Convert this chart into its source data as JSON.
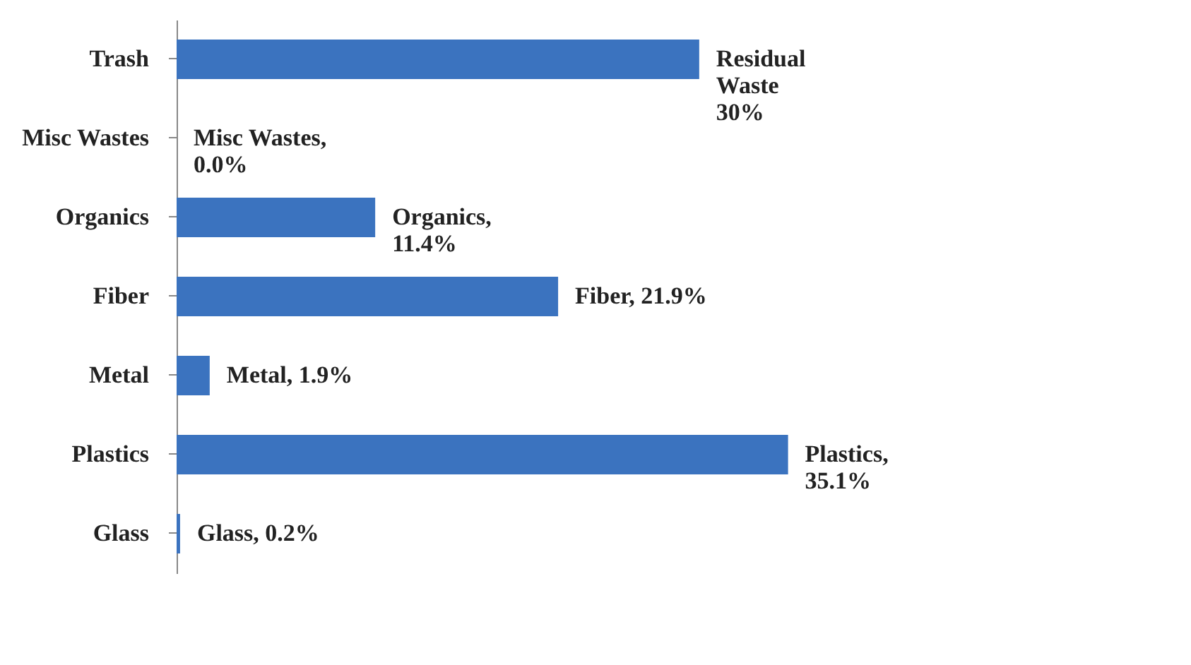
{
  "chart_data": {
    "type": "bar",
    "orientation": "horizontal",
    "categories": [
      "Trash",
      "Misc Wastes",
      "Organics",
      "Fiber",
      "Metal",
      "Plastics",
      "Glass"
    ],
    "values": [
      30,
      0.0,
      11.4,
      21.9,
      1.9,
      35.1,
      0.2
    ],
    "value_labels": [
      "Residual\nWaste\n30%",
      "Misc Wastes,\n0.0%",
      "Organics,\n11.4%",
      "Fiber, 21.9%",
      "Metal, 1.9%",
      "Plastics,\n35.1%",
      "Glass, 0.2%"
    ],
    "color": "#3b73bf"
  }
}
